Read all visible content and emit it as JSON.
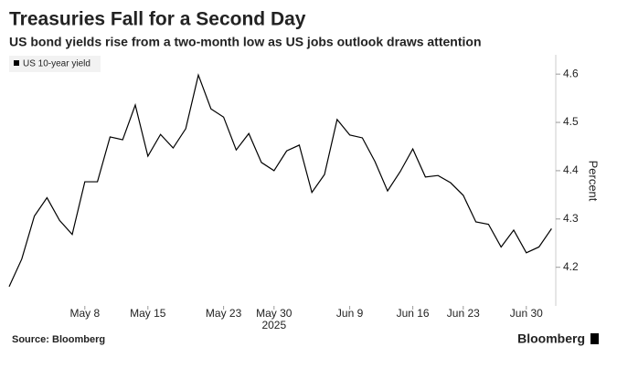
{
  "chart_data": {
    "type": "line",
    "title": "Treasuries Fall for a Second Day",
    "subtitle": "US bond yields rise from a two-month low as US jobs outlook draws attention",
    "y_label": "Percent",
    "source": "Source: Bloomberg",
    "brand": "Bloomberg",
    "x_year_label": "2025",
    "categories": [
      null,
      null,
      null,
      null,
      null,
      null,
      "May 8",
      null,
      null,
      null,
      null,
      "May 15",
      null,
      null,
      null,
      null,
      null,
      "May 23",
      null,
      null,
      null,
      "May 30",
      null,
      null,
      null,
      null,
      null,
      "Jun 9",
      null,
      null,
      null,
      null,
      "Jun 16",
      null,
      null,
      null,
      "Jun 23",
      null,
      null,
      null,
      null,
      "Jun 30",
      null,
      null
    ],
    "series": [
      {
        "name": "US 10-year yield",
        "color": "#000000",
        "values": [
          4.16,
          4.217,
          4.306,
          4.344,
          4.297,
          4.268,
          4.377,
          4.377,
          4.47,
          4.464,
          4.536,
          4.43,
          4.475,
          4.447,
          4.487,
          4.598,
          4.528,
          4.511,
          4.443,
          4.477,
          4.417,
          4.4,
          4.441,
          4.453,
          4.355,
          4.392,
          4.506,
          4.474,
          4.468,
          4.419,
          4.358,
          4.398,
          4.445,
          4.387,
          4.39,
          4.375,
          4.349,
          4.294,
          4.289,
          4.242,
          4.277,
          4.23,
          4.242,
          4.28
        ]
      }
    ],
    "ylim": [
      4.12,
      4.64
    ],
    "yticks": [
      4.2,
      4.3,
      4.4,
      4.5,
      4.6
    ],
    "legend": "top-left"
  }
}
